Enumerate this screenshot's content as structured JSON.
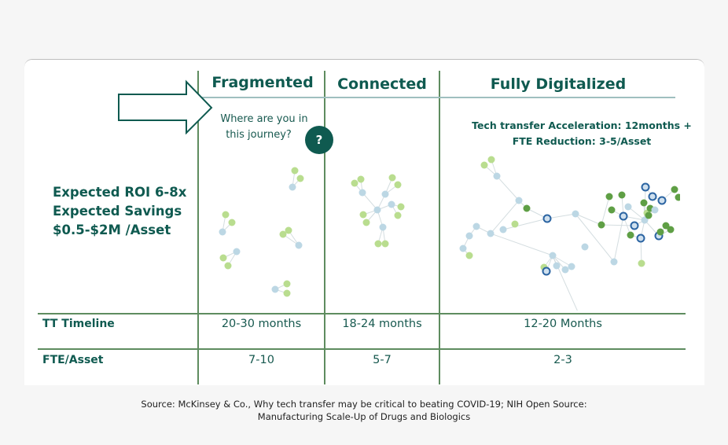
{
  "columns": [
    {
      "title": "Fragmented"
    },
    {
      "title": "Connected"
    },
    {
      "title": "Fully Digitalized"
    }
  ],
  "prompt": {
    "line1": "Where are you in",
    "line2": "this journey?",
    "badge": "?",
    "arrow_icon": "right-arrow-outline"
  },
  "summary": {
    "lines": [
      "Expected ROI 6-8x",
      "Expected Savings",
      "$0.5-$2M /Asset"
    ]
  },
  "digital_metrics": {
    "line1": "Tech transfer Acceleration: 12months +",
    "line2": "FTE Reduction: 3-5/Asset"
  },
  "table": {
    "rows": [
      {
        "label": "TT Timeline",
        "values": [
          "20-30 months",
          "18-24 months",
          "12-20 Months"
        ]
      },
      {
        "label": "FTE/Asset",
        "values": [
          "7-10",
          "5-7",
          "2-3"
        ]
      }
    ]
  },
  "colors": {
    "brand": "#0f5a50",
    "grid": "#5e8c5f",
    "node_light_green": "#b9dd8f",
    "node_light_blue": "#bcd7e4",
    "node_green": "#5f9f45",
    "node_dark_blue": "#2b64a2"
  },
  "source": {
    "line1": "Source: McKinsey & Co., Why tech transfer may be critical to beating COVID-19; NIH Open Source:",
    "line2": "Manufacturing Scale-Up of Drugs and Biologics"
  }
}
